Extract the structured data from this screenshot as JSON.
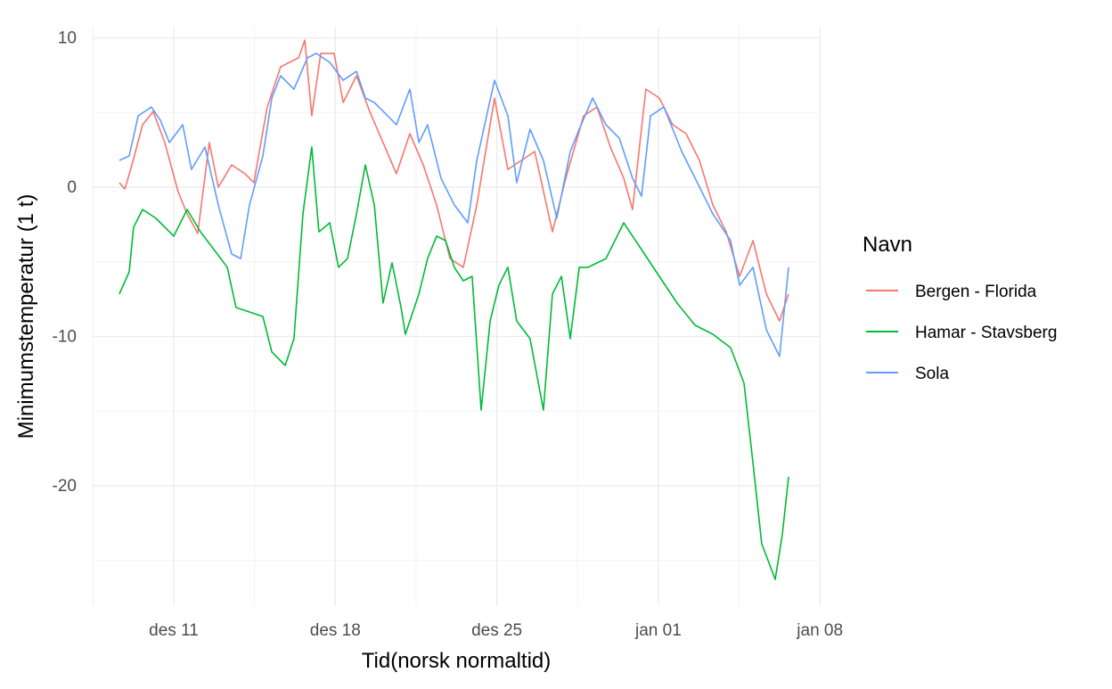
{
  "chart_data": {
    "type": "line",
    "title": "",
    "xlabel": "Tid(norsk normaltid)",
    "ylabel": "Minimumstemperatur (1 t)",
    "x_unit": "day (des 1 = 1, jan 01 = 32)",
    "xlim": [
      7.4,
      39.1
    ],
    "ylim": [
      -28,
      10.8
    ],
    "x_ticks": [
      {
        "value": 11,
        "label": "des 11"
      },
      {
        "value": 18,
        "label": "des 18"
      },
      {
        "value": 25,
        "label": "des 25"
      },
      {
        "value": 32,
        "label": "jan 01"
      },
      {
        "value": 39,
        "label": "jan 08"
      }
    ],
    "y_ticks": [
      {
        "value": 10,
        "label": "10"
      },
      {
        "value": 0,
        "label": "0"
      },
      {
        "value": -10,
        "label": "-10"
      },
      {
        "value": -20,
        "label": "-20"
      }
    ],
    "grid": true,
    "legend": {
      "title": "Navn",
      "position": "right"
    },
    "series": [
      {
        "name": "Bergen - Florida",
        "color": "#F8766D",
        "points": [
          [
            8.64,
            0.3
          ],
          [
            8.88,
            -0.12
          ],
          [
            9.19,
            1.49
          ],
          [
            9.65,
            4.18
          ],
          [
            10.11,
            5.07
          ],
          [
            10.61,
            2.99
          ],
          [
            11.19,
            -0.3
          ],
          [
            11.58,
            -1.79
          ],
          [
            12.04,
            -3.1
          ],
          [
            12.54,
            2.99
          ],
          [
            12.93,
            0
          ],
          [
            13.51,
            1.49
          ],
          [
            14.09,
            0.9
          ],
          [
            14.47,
            0.3
          ],
          [
            15.05,
            5.37
          ],
          [
            15.63,
            8.06
          ],
          [
            16.41,
            8.66
          ],
          [
            16.68,
            9.85
          ],
          [
            16.98,
            4.78
          ],
          [
            17.37,
            8.96
          ],
          [
            17.95,
            8.96
          ],
          [
            18.34,
            5.67
          ],
          [
            18.92,
            7.46
          ],
          [
            19.49,
            5.07
          ],
          [
            20.07,
            2.99
          ],
          [
            20.65,
            0.9
          ],
          [
            21.23,
            3.58
          ],
          [
            21.81,
            1.49
          ],
          [
            22.39,
            -1.19
          ],
          [
            22.97,
            -4.78
          ],
          [
            23.55,
            -5.37
          ],
          [
            24.13,
            -1.19
          ],
          [
            24.9,
            5.97
          ],
          [
            25.48,
            1.19
          ],
          [
            26.06,
            1.79
          ],
          [
            26.64,
            2.39
          ],
          [
            27.41,
            -2.99
          ],
          [
            27.99,
            0.6
          ],
          [
            28.76,
            4.78
          ],
          [
            29.34,
            5.37
          ],
          [
            29.92,
            2.69
          ],
          [
            30.5,
            0.6
          ],
          [
            30.88,
            -1.49
          ],
          [
            31.46,
            6.57
          ],
          [
            32.04,
            5.97
          ],
          [
            32.62,
            4.18
          ],
          [
            33.2,
            3.58
          ],
          [
            33.78,
            1.79
          ],
          [
            34.36,
            -1.19
          ],
          [
            34.94,
            -2.99
          ],
          [
            35.52,
            -5.97
          ],
          [
            36.1,
            -3.58
          ],
          [
            36.68,
            -7.16
          ],
          [
            37.25,
            -8.96
          ],
          [
            37.64,
            -7.16
          ]
        ]
      },
      {
        "name": "Hamar - Stavsberg",
        "color": "#00BA38",
        "points": [
          [
            8.64,
            -7.16
          ],
          [
            9.07,
            -5.67
          ],
          [
            9.26,
            -2.69
          ],
          [
            9.65,
            -1.49
          ],
          [
            10.23,
            -2.09
          ],
          [
            11,
            -3.28
          ],
          [
            11.58,
            -1.49
          ],
          [
            12.16,
            -2.99
          ],
          [
            12.74,
            -4.18
          ],
          [
            13.32,
            -5.37
          ],
          [
            13.7,
            -8.06
          ],
          [
            14.28,
            -8.36
          ],
          [
            14.86,
            -8.66
          ],
          [
            15.25,
            -11.04
          ],
          [
            15.83,
            -11.94
          ],
          [
            16.21,
            -10.15
          ],
          [
            16.6,
            -1.79
          ],
          [
            16.98,
            2.69
          ],
          [
            17.29,
            -2.99
          ],
          [
            17.76,
            -2.39
          ],
          [
            18.14,
            -5.37
          ],
          [
            18.53,
            -4.78
          ],
          [
            18.92,
            -1.79
          ],
          [
            19.3,
            1.49
          ],
          [
            19.69,
            -1.19
          ],
          [
            20.07,
            -7.76
          ],
          [
            20.46,
            -5.07
          ],
          [
            20.85,
            -8.06
          ],
          [
            21.04,
            -9.85
          ],
          [
            21.62,
            -7.16
          ],
          [
            22,
            -4.78
          ],
          [
            22.39,
            -3.28
          ],
          [
            22.78,
            -3.58
          ],
          [
            23.16,
            -5.37
          ],
          [
            23.55,
            -6.27
          ],
          [
            23.93,
            -5.97
          ],
          [
            24.32,
            -14.93
          ],
          [
            24.71,
            -8.96
          ],
          [
            25.09,
            -6.57
          ],
          [
            25.48,
            -5.37
          ],
          [
            25.86,
            -8.96
          ],
          [
            26.44,
            -10.15
          ],
          [
            27.02,
            -14.93
          ],
          [
            27.41,
            -7.16
          ],
          [
            27.8,
            -5.97
          ],
          [
            28.18,
            -10.15
          ],
          [
            28.57,
            -5.37
          ],
          [
            28.95,
            -5.37
          ],
          [
            29.73,
            -4.78
          ],
          [
            30.5,
            -2.39
          ],
          [
            31.27,
            -4.18
          ],
          [
            32.04,
            -5.97
          ],
          [
            32.81,
            -7.76
          ],
          [
            33.59,
            -9.25
          ],
          [
            34.36,
            -9.85
          ],
          [
            35.13,
            -10.75
          ],
          [
            35.71,
            -13.13
          ],
          [
            36.1,
            -18.5
          ],
          [
            36.48,
            -23.88
          ],
          [
            37.06,
            -26.27
          ],
          [
            37.37,
            -23.28
          ],
          [
            37.64,
            -19.4
          ]
        ]
      },
      {
        "name": "Sola",
        "color": "#619CFF",
        "points": [
          [
            8.64,
            1.79
          ],
          [
            9.07,
            2.09
          ],
          [
            9.46,
            4.78
          ],
          [
            10.03,
            5.37
          ],
          [
            10.42,
            4.48
          ],
          [
            10.81,
            2.99
          ],
          [
            11.39,
            4.18
          ],
          [
            11.77,
            1.19
          ],
          [
            12.35,
            2.69
          ],
          [
            12.93,
            -1.19
          ],
          [
            13.51,
            -4.48
          ],
          [
            13.9,
            -4.78
          ],
          [
            14.28,
            -1.19
          ],
          [
            14.86,
            2.09
          ],
          [
            15.25,
            5.97
          ],
          [
            15.63,
            7.46
          ],
          [
            16.21,
            6.57
          ],
          [
            16.79,
            8.66
          ],
          [
            17.18,
            8.96
          ],
          [
            17.76,
            8.36
          ],
          [
            18.34,
            7.16
          ],
          [
            18.92,
            7.76
          ],
          [
            19.3,
            5.97
          ],
          [
            19.69,
            5.67
          ],
          [
            20.27,
            4.78
          ],
          [
            20.65,
            4.18
          ],
          [
            21.23,
            6.57
          ],
          [
            21.62,
            2.99
          ],
          [
            22,
            4.18
          ],
          [
            22.58,
            0.6
          ],
          [
            23.16,
            -1.19
          ],
          [
            23.74,
            -2.39
          ],
          [
            24.13,
            1.79
          ],
          [
            24.9,
            7.16
          ],
          [
            25.48,
            4.78
          ],
          [
            25.86,
            0.3
          ],
          [
            26.44,
            3.88
          ],
          [
            27.02,
            1.79
          ],
          [
            27.6,
            -2.09
          ],
          [
            28.18,
            2.39
          ],
          [
            28.57,
            3.88
          ],
          [
            29.15,
            5.97
          ],
          [
            29.73,
            4.18
          ],
          [
            30.31,
            3.28
          ],
          [
            30.88,
            0.6
          ],
          [
            31.27,
            -0.6
          ],
          [
            31.66,
            4.78
          ],
          [
            32.24,
            5.37
          ],
          [
            33.01,
            2.39
          ],
          [
            33.59,
            0.6
          ],
          [
            34.36,
            -1.79
          ],
          [
            35.13,
            -3.58
          ],
          [
            35.52,
            -6.57
          ],
          [
            36.1,
            -5.37
          ],
          [
            36.68,
            -9.55
          ],
          [
            37.25,
            -11.34
          ],
          [
            37.64,
            -5.37
          ]
        ]
      }
    ]
  }
}
